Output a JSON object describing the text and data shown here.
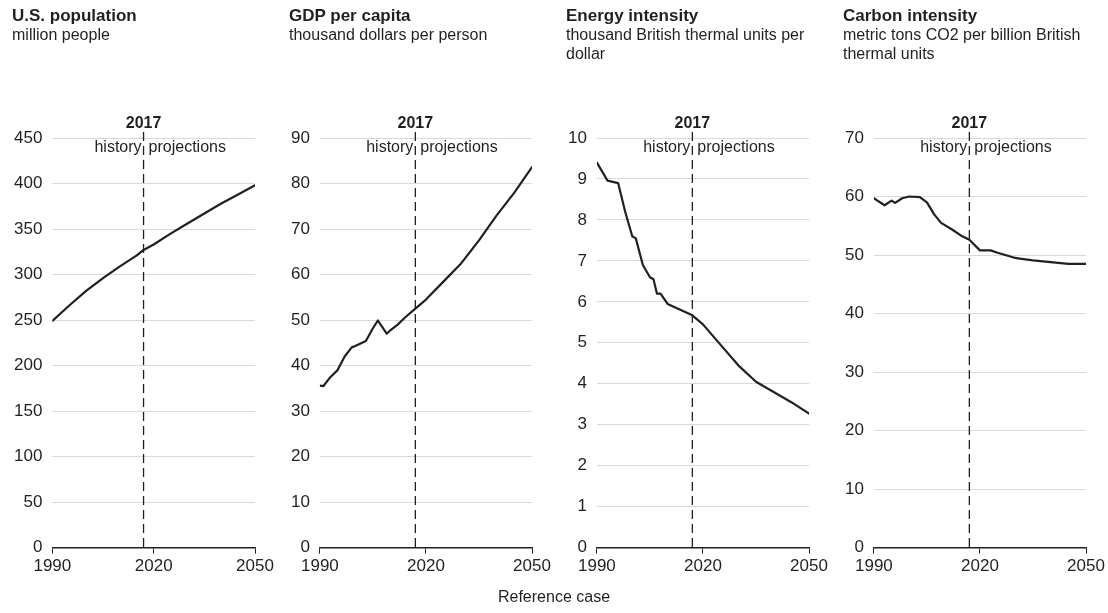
{
  "chart_data": [
    {
      "type": "line",
      "title": "U.S. population",
      "subtitle": "million people",
      "x": [
        1990,
        1995,
        2000,
        2005,
        2010,
        2015,
        2017,
        2020,
        2025,
        2030,
        2035,
        2040,
        2045,
        2050
      ],
      "series": [
        {
          "color": "#231f20",
          "values": [
            249,
            266,
            282,
            296,
            309,
            321,
            327,
            333,
            345,
            356,
            367,
            378,
            388,
            398
          ]
        }
      ],
      "xlim": [
        1990,
        2050
      ],
      "xticks": [
        1990,
        2020,
        2050
      ],
      "ylim": [
        0,
        450
      ],
      "yticks": [
        0,
        50,
        100,
        150,
        200,
        250,
        300,
        350,
        400,
        450
      ],
      "grid": "y",
      "marker": "none",
      "line_style": "solid",
      "ref_lines": [
        {
          "axis": "x",
          "value": 2017,
          "label": "2017",
          "line_style": "dashed"
        }
      ],
      "annotations": [
        "history",
        "projections",
        "Reference case"
      ]
    },
    {
      "type": "line",
      "title": "GDP per capita",
      "subtitle": "thousand dollars per person",
      "x": [
        1990,
        1991,
        1993,
        1995,
        1997,
        1999,
        2000,
        2003,
        2005,
        2006.4,
        2008.9,
        2010,
        2012,
        2014,
        2017,
        2020,
        2025,
        2030,
        2035,
        2040,
        2045,
        2050
      ],
      "series": [
        {
          "color": "#231f20",
          "values": [
            35.6,
            35.5,
            37.5,
            39,
            42,
            44,
            44.3,
            45.4,
            48.2,
            49.9,
            47,
            47.8,
            49,
            50.5,
            52.5,
            54.5,
            58.5,
            62.5,
            67.5,
            73,
            78,
            83.6
          ]
        }
      ],
      "xlim": [
        1990,
        2050
      ],
      "xticks": [
        1990,
        2020,
        2050
      ],
      "ylim": [
        0,
        90
      ],
      "yticks": [
        0,
        10,
        20,
        30,
        40,
        50,
        60,
        70,
        80,
        90
      ],
      "grid": "y",
      "marker": "none",
      "line_style": "solid",
      "ref_lines": [
        {
          "axis": "x",
          "value": 2017,
          "label": "2017",
          "line_style": "dashed"
        }
      ],
      "annotations": [
        "history",
        "projections"
      ]
    },
    {
      "type": "line",
      "title": "Energy intensity",
      "subtitle": "thousand British thermal units per dollar",
      "x": [
        1990,
        1993,
        1996,
        1998,
        2000,
        2001,
        2003,
        2005,
        2006,
        2007,
        2008,
        2010,
        2017,
        2020,
        2025,
        2030,
        2035,
        2040,
        2045,
        2050
      ],
      "series": [
        {
          "color": "#231f20",
          "values": [
            9.4,
            8.96,
            8.9,
            8.2,
            7.6,
            7.55,
            6.9,
            6.6,
            6.55,
            6.2,
            6.2,
            5.95,
            5.67,
            5.45,
            4.95,
            4.45,
            4.05,
            3.8,
            3.55,
            3.27
          ]
        }
      ],
      "xlim": [
        1990,
        2050
      ],
      "xticks": [
        1990,
        2020,
        2050
      ],
      "ylim": [
        0,
        10
      ],
      "yticks": [
        0,
        1,
        2,
        3,
        4,
        5,
        6,
        7,
        8,
        9,
        10
      ],
      "grid": "y",
      "marker": "none",
      "line_style": "solid",
      "ref_lines": [
        {
          "axis": "x",
          "value": 2017,
          "label": "2017",
          "line_style": "dashed"
        }
      ],
      "annotations": [
        "history",
        "projections"
      ]
    },
    {
      "type": "line",
      "title": "Carbon intensity",
      "subtitle": "metric tons CO2 per billion British thermal units",
      "x": [
        1990,
        1991,
        1993,
        1995,
        1996,
        1998,
        2000,
        2003,
        2005,
        2007,
        2009,
        2012,
        2015,
        2017,
        2020,
        2023,
        2025,
        2030,
        2035,
        2040,
        2045,
        2050
      ],
      "series": [
        {
          "color": "#231f20",
          "values": [
            59.7,
            59.3,
            58.5,
            59.3,
            58.9,
            59.7,
            60,
            59.9,
            59,
            57,
            55.5,
            54.4,
            53.2,
            52.6,
            50.8,
            50.8,
            50.4,
            49.5,
            49.1,
            48.8,
            48.5,
            48.5
          ]
        }
      ],
      "xlim": [
        1990,
        2050
      ],
      "xticks": [
        1990,
        2020,
        2050
      ],
      "ylim": [
        0,
        70
      ],
      "yticks": [
        0,
        10,
        20,
        30,
        40,
        50,
        60,
        70
      ],
      "grid": "y",
      "marker": "none",
      "line_style": "solid",
      "ref_lines": [
        {
          "axis": "x",
          "value": 2017,
          "label": "2017",
          "line_style": "dashed"
        }
      ],
      "annotations": [
        "history",
        "projections"
      ]
    }
  ]
}
